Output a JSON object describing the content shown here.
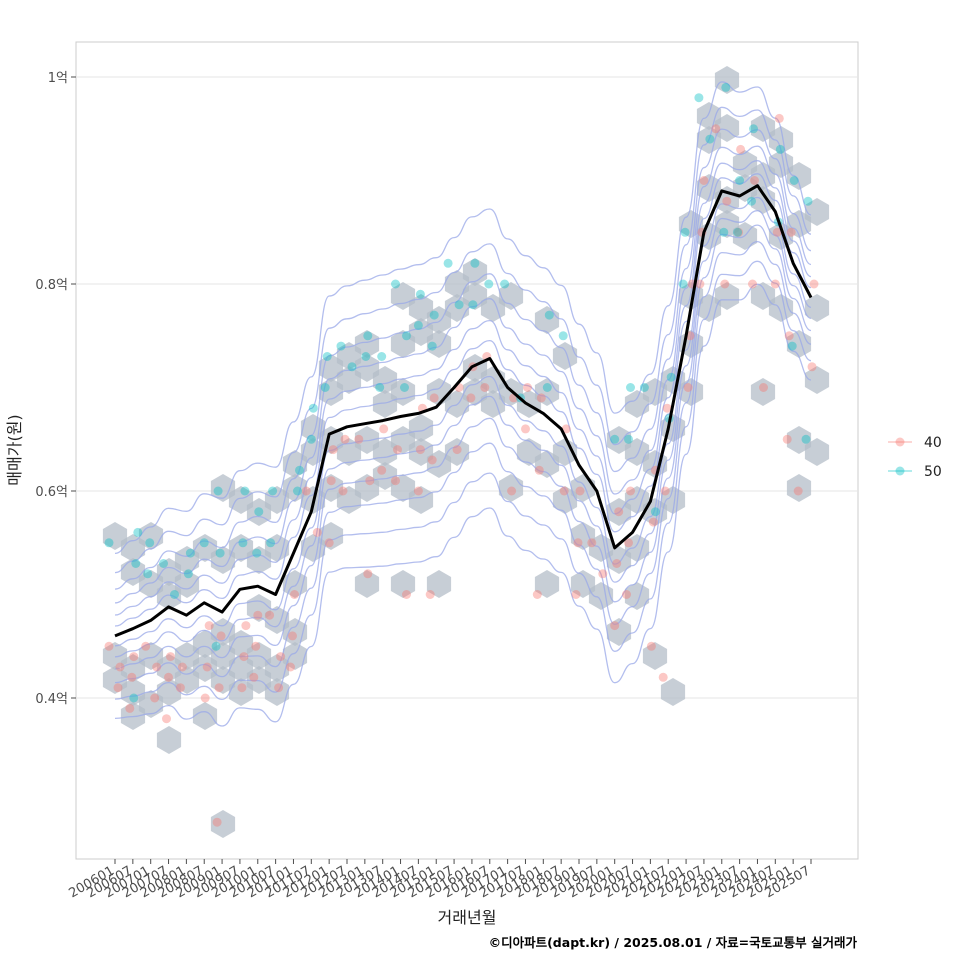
{
  "chart_data": {
    "type": "scatter",
    "title": "",
    "xlabel": "거래년월",
    "ylabel": "매매가(원)",
    "caption": "©디아파트(dapt.kr) / 2025.08.01 / 자료=국토교통부 실거래가",
    "grid": true,
    "y_unit": "억",
    "ylim": [
      0.25,
      1.03
    ],
    "y_ticks": [
      {
        "value": 0.4,
        "label": "0.4억"
      },
      {
        "value": 0.6,
        "label": "0.6억"
      },
      {
        "value": 0.8,
        "label": "0.8억"
      },
      {
        "value": 1.0,
        "label": "1억"
      }
    ],
    "x_tick_labels": [
      "200601",
      "200607",
      "200701",
      "200707",
      "200801",
      "200807",
      "200901",
      "200907",
      "201001",
      "201007",
      "201101",
      "201107",
      "201201",
      "201207",
      "201301",
      "201307",
      "201401",
      "201407",
      "201501",
      "201507",
      "201601",
      "201607",
      "201701",
      "201707",
      "201801",
      "201807",
      "201901",
      "201907",
      "202001",
      "202007",
      "202101",
      "202107",
      "202201",
      "202207",
      "202301",
      "202307",
      "202401",
      "202407",
      "202501",
      "202507"
    ],
    "legend": {
      "title": "",
      "position": "right",
      "entries": [
        {
          "name": "40",
          "color": "#F8766D"
        },
        {
          "name": "50",
          "color": "#00BFC4"
        }
      ]
    },
    "colors": {
      "hex_fill": "#b4bec8",
      "density_line": "#9aa8e8",
      "trend_line": "#000000"
    },
    "trend_line": {
      "name": "moving average",
      "x": [
        "200601",
        "200607",
        "200701",
        "200707",
        "200801",
        "200807",
        "200901",
        "200907",
        "201001",
        "201007",
        "201101",
        "201107",
        "201201",
        "201207",
        "201301",
        "201307",
        "201401",
        "201407",
        "201501",
        "201507",
        "201601",
        "201607",
        "201701",
        "201707",
        "201801",
        "201807",
        "201901",
        "201907",
        "202001",
        "202007",
        "202101",
        "202107",
        "202201",
        "202207",
        "202301",
        "202307",
        "202401",
        "202407",
        "202501",
        "202507"
      ],
      "values": [
        0.46,
        0.467,
        0.475,
        0.488,
        0.48,
        0.492,
        0.483,
        0.505,
        0.508,
        0.5,
        0.54,
        0.58,
        0.655,
        0.662,
        0.665,
        0.668,
        0.672,
        0.675,
        0.681,
        0.7,
        0.72,
        0.728,
        0.7,
        0.685,
        0.675,
        0.66,
        0.625,
        0.6,
        0.545,
        0.56,
        0.59,
        0.66,
        0.75,
        0.85,
        0.89,
        0.885,
        0.895,
        0.87,
        0.82,
        0.787
      ]
    },
    "series": [
      {
        "name": "40",
        "points": [
          {
            "x": "200601",
            "y": 0.45
          },
          {
            "x": "200601",
            "y": 0.43
          },
          {
            "x": "200601",
            "y": 0.41
          },
          {
            "x": "200607",
            "y": 0.44
          },
          {
            "x": "200607",
            "y": 0.42
          },
          {
            "x": "200607",
            "y": 0.39
          },
          {
            "x": "200701",
            "y": 0.45
          },
          {
            "x": "200701",
            "y": 0.43
          },
          {
            "x": "200701",
            "y": 0.4
          },
          {
            "x": "200707",
            "y": 0.44
          },
          {
            "x": "200707",
            "y": 0.42
          },
          {
            "x": "200707",
            "y": 0.38
          },
          {
            "x": "200801",
            "y": 0.43
          },
          {
            "x": "200801",
            "y": 0.41
          },
          {
            "x": "200807",
            "y": 0.47
          },
          {
            "x": "200807",
            "y": 0.43
          },
          {
            "x": "200807",
            "y": 0.4
          },
          {
            "x": "200901",
            "y": 0.46
          },
          {
            "x": "200901",
            "y": 0.41
          },
          {
            "x": "200901",
            "y": 0.28
          },
          {
            "x": "200907",
            "y": 0.47
          },
          {
            "x": "200907",
            "y": 0.44
          },
          {
            "x": "200907",
            "y": 0.41
          },
          {
            "x": "201001",
            "y": 0.48
          },
          {
            "x": "201001",
            "y": 0.45
          },
          {
            "x": "201001",
            "y": 0.42
          },
          {
            "x": "201007",
            "y": 0.48
          },
          {
            "x": "201007",
            "y": 0.44
          },
          {
            "x": "201007",
            "y": 0.41
          },
          {
            "x": "201101",
            "y": 0.5
          },
          {
            "x": "201101",
            "y": 0.46
          },
          {
            "x": "201101",
            "y": 0.43
          },
          {
            "x": "201107",
            "y": 0.6
          },
          {
            "x": "201107",
            "y": 0.56
          },
          {
            "x": "201201",
            "y": 0.64
          },
          {
            "x": "201201",
            "y": 0.61
          },
          {
            "x": "201201",
            "y": 0.55
          },
          {
            "x": "201207",
            "y": 0.65
          },
          {
            "x": "201207",
            "y": 0.6
          },
          {
            "x": "201301",
            "y": 0.65
          },
          {
            "x": "201301",
            "y": 0.61
          },
          {
            "x": "201301",
            "y": 0.52
          },
          {
            "x": "201307",
            "y": 0.66
          },
          {
            "x": "201307",
            "y": 0.62
          },
          {
            "x": "201401",
            "y": 0.64
          },
          {
            "x": "201401",
            "y": 0.61
          },
          {
            "x": "201401",
            "y": 0.5
          },
          {
            "x": "201407",
            "y": 0.68
          },
          {
            "x": "201407",
            "y": 0.64
          },
          {
            "x": "201407",
            "y": 0.6
          },
          {
            "x": "201501",
            "y": 0.69
          },
          {
            "x": "201501",
            "y": 0.63
          },
          {
            "x": "201501",
            "y": 0.5
          },
          {
            "x": "201507",
            "y": 0.7
          },
          {
            "x": "201507",
            "y": 0.64
          },
          {
            "x": "201601",
            "y": 0.72
          },
          {
            "x": "201601",
            "y": 0.69
          },
          {
            "x": "201607",
            "y": 0.73
          },
          {
            "x": "201607",
            "y": 0.7
          },
          {
            "x": "201701",
            "y": 0.69
          },
          {
            "x": "201701",
            "y": 0.6
          },
          {
            "x": "201707",
            "y": 0.7
          },
          {
            "x": "201707",
            "y": 0.66
          },
          {
            "x": "201801",
            "y": 0.69
          },
          {
            "x": "201801",
            "y": 0.62
          },
          {
            "x": "201801",
            "y": 0.5
          },
          {
            "x": "201807",
            "y": 0.66
          },
          {
            "x": "201807",
            "y": 0.6
          },
          {
            "x": "201901",
            "y": 0.6
          },
          {
            "x": "201901",
            "y": 0.55
          },
          {
            "x": "201901",
            "y": 0.5
          },
          {
            "x": "201907",
            "y": 0.55
          },
          {
            "x": "201907",
            "y": 0.52
          },
          {
            "x": "202001",
            "y": 0.58
          },
          {
            "x": "202001",
            "y": 0.53
          },
          {
            "x": "202001",
            "y": 0.47
          },
          {
            "x": "202007",
            "y": 0.6
          },
          {
            "x": "202007",
            "y": 0.55
          },
          {
            "x": "202007",
            "y": 0.5
          },
          {
            "x": "202101",
            "y": 0.62
          },
          {
            "x": "202101",
            "y": 0.57
          },
          {
            "x": "202101",
            "y": 0.45
          },
          {
            "x": "202107",
            "y": 0.68
          },
          {
            "x": "202107",
            "y": 0.6
          },
          {
            "x": "202107",
            "y": 0.42
          },
          {
            "x": "202201",
            "y": 0.8
          },
          {
            "x": "202201",
            "y": 0.75
          },
          {
            "x": "202201",
            "y": 0.7
          },
          {
            "x": "202207",
            "y": 0.9
          },
          {
            "x": "202207",
            "y": 0.85
          },
          {
            "x": "202207",
            "y": 0.8
          },
          {
            "x": "202301",
            "y": 0.95
          },
          {
            "x": "202301",
            "y": 0.88
          },
          {
            "x": "202301",
            "y": 0.8
          },
          {
            "x": "202307",
            "y": 0.93
          },
          {
            "x": "202307",
            "y": 0.85
          },
          {
            "x": "202401",
            "y": 0.9
          },
          {
            "x": "202401",
            "y": 0.8
          },
          {
            "x": "202401",
            "y": 0.7
          },
          {
            "x": "202407",
            "y": 0.96
          },
          {
            "x": "202407",
            "y": 0.85
          },
          {
            "x": "202407",
            "y": 0.8
          },
          {
            "x": "202501",
            "y": 0.85
          },
          {
            "x": "202501",
            "y": 0.75
          },
          {
            "x": "202501",
            "y": 0.65
          },
          {
            "x": "202501",
            "y": 0.6
          },
          {
            "x": "202507",
            "y": 0.8
          },
          {
            "x": "202507",
            "y": 0.72
          }
        ]
      },
      {
        "name": "50",
        "points": [
          {
            "x": "200601",
            "y": 0.55
          },
          {
            "x": "200607",
            "y": 0.56
          },
          {
            "x": "200607",
            "y": 0.53
          },
          {
            "x": "200607",
            "y": 0.4
          },
          {
            "x": "200701",
            "y": 0.55
          },
          {
            "x": "200701",
            "y": 0.52
          },
          {
            "x": "200707",
            "y": 0.53
          },
          {
            "x": "200707",
            "y": 0.5
          },
          {
            "x": "200801",
            "y": 0.54
          },
          {
            "x": "200801",
            "y": 0.52
          },
          {
            "x": "200807",
            "y": 0.55
          },
          {
            "x": "200901",
            "y": 0.54
          },
          {
            "x": "200901",
            "y": 0.6
          },
          {
            "x": "200901",
            "y": 0.45
          },
          {
            "x": "200907",
            "y": 0.6
          },
          {
            "x": "200907",
            "y": 0.55
          },
          {
            "x": "201001",
            "y": 0.58
          },
          {
            "x": "201001",
            "y": 0.54
          },
          {
            "x": "201007",
            "y": 0.6
          },
          {
            "x": "201007",
            "y": 0.55
          },
          {
            "x": "201101",
            "y": 0.62
          },
          {
            "x": "201101",
            "y": 0.6
          },
          {
            "x": "201107",
            "y": 0.68
          },
          {
            "x": "201107",
            "y": 0.65
          },
          {
            "x": "201201",
            "y": 0.73
          },
          {
            "x": "201201",
            "y": 0.7
          },
          {
            "x": "201207",
            "y": 0.74
          },
          {
            "x": "201207",
            "y": 0.72
          },
          {
            "x": "201301",
            "y": 0.75
          },
          {
            "x": "201301",
            "y": 0.73
          },
          {
            "x": "201307",
            "y": 0.73
          },
          {
            "x": "201307",
            "y": 0.7
          },
          {
            "x": "201401",
            "y": 0.8
          },
          {
            "x": "201401",
            "y": 0.75
          },
          {
            "x": "201401",
            "y": 0.7
          },
          {
            "x": "201407",
            "y": 0.79
          },
          {
            "x": "201407",
            "y": 0.76
          },
          {
            "x": "201501",
            "y": 0.77
          },
          {
            "x": "201501",
            "y": 0.74
          },
          {
            "x": "201507",
            "y": 0.82
          },
          {
            "x": "201507",
            "y": 0.78
          },
          {
            "x": "201601",
            "y": 0.82
          },
          {
            "x": "201601",
            "y": 0.78
          },
          {
            "x": "201607",
            "y": 0.8
          },
          {
            "x": "201701",
            "y": 0.8
          },
          {
            "x": "201707",
            "y": 0.69
          },
          {
            "x": "201801",
            "y": 0.77
          },
          {
            "x": "201801",
            "y": 0.7
          },
          {
            "x": "201807",
            "y": 0.75
          },
          {
            "x": "202001",
            "y": 0.65
          },
          {
            "x": "202007",
            "y": 0.7
          },
          {
            "x": "202007",
            "y": 0.65
          },
          {
            "x": "202101",
            "y": 0.7
          },
          {
            "x": "202101",
            "y": 0.58
          },
          {
            "x": "202107",
            "y": 0.71
          },
          {
            "x": "202107",
            "y": 0.67
          },
          {
            "x": "202201",
            "y": 0.85
          },
          {
            "x": "202201",
            "y": 0.8
          },
          {
            "x": "202207",
            "y": 0.98
          },
          {
            "x": "202207",
            "y": 0.94
          },
          {
            "x": "202301",
            "y": 0.99
          },
          {
            "x": "202301",
            "y": 0.85
          },
          {
            "x": "202307",
            "y": 0.9
          },
          {
            "x": "202307",
            "y": 0.85
          },
          {
            "x": "202401",
            "y": 0.95
          },
          {
            "x": "202401",
            "y": 0.88
          },
          {
            "x": "202407",
            "y": 0.93
          },
          {
            "x": "202407",
            "y": 0.86
          },
          {
            "x": "202501",
            "y": 0.9
          },
          {
            "x": "202501",
            "y": 0.74
          },
          {
            "x": "202507",
            "y": 0.88
          },
          {
            "x": "202507",
            "y": 0.65
          }
        ]
      }
    ]
  }
}
